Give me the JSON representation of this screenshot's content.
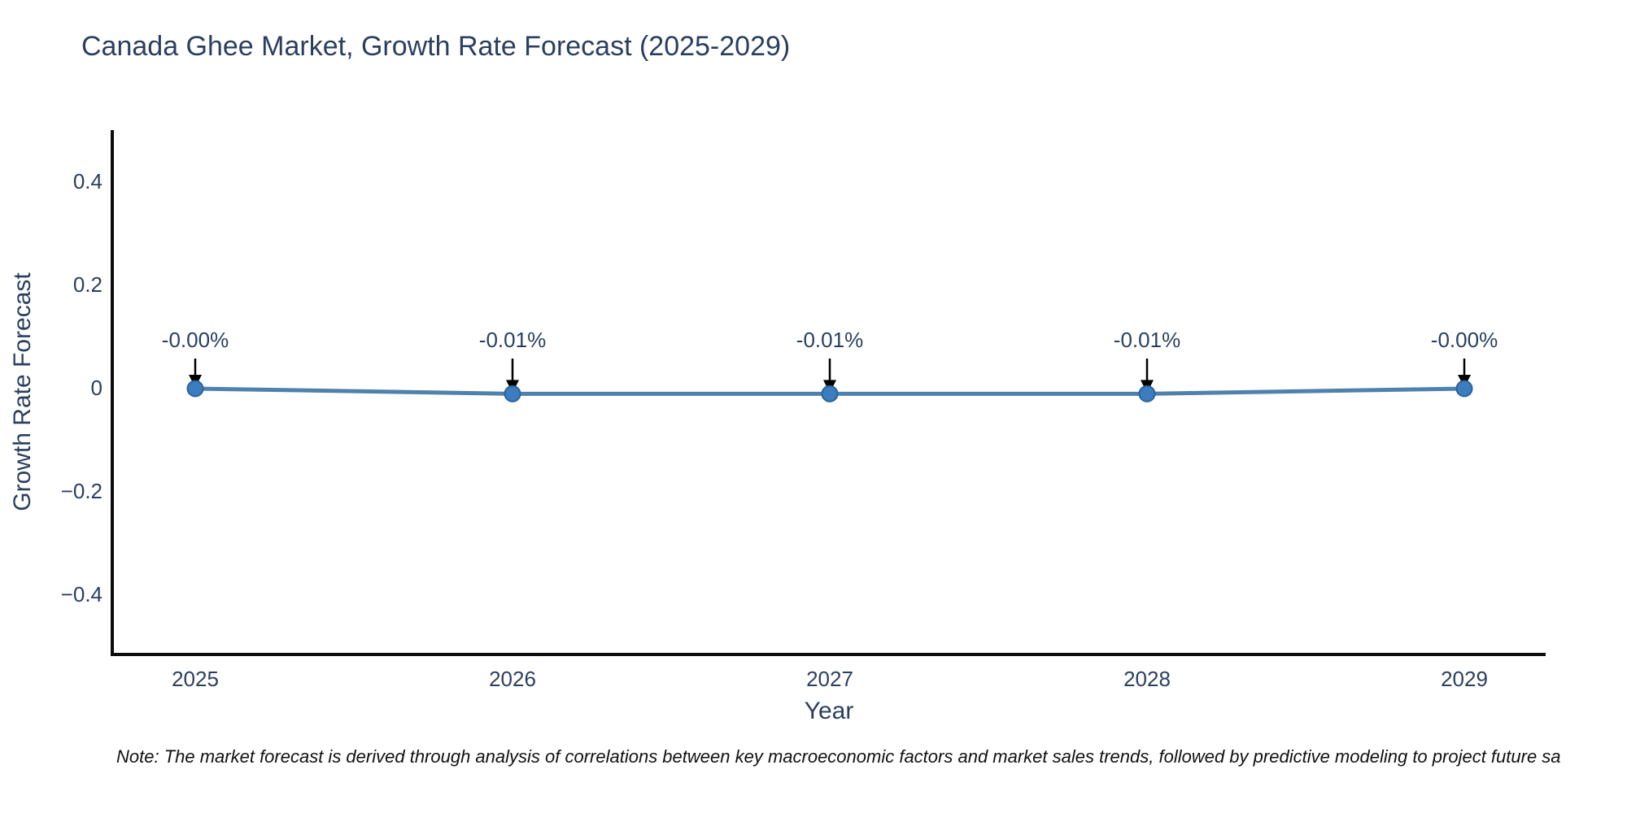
{
  "chart_data": {
    "type": "line",
    "title": "Canada Ghee Market, Growth Rate Forecast (2025-2029)",
    "xlabel": "Year",
    "ylabel": "Growth Rate Forecast",
    "x": [
      2025,
      2026,
      2027,
      2028,
      2029
    ],
    "series": [
      {
        "name": "Growth Rate Forecast",
        "values": [
          0.0,
          -0.01,
          -0.01,
          -0.01,
          0.0
        ]
      }
    ],
    "point_labels": [
      "-0.00%",
      "-0.01%",
      "-0.01%",
      "-0.01%",
      "-0.00%"
    ],
    "xtick_labels": [
      "2025",
      "2026",
      "2027",
      "2028",
      "2029"
    ],
    "ytick_values": [
      0.4,
      0.2,
      0,
      -0.2,
      -0.4
    ],
    "ytick_labels": [
      "0.4",
      "0.2",
      "0",
      "−0.2",
      "−0.4"
    ],
    "ylim": [
      -0.5,
      0.5
    ],
    "grid": false,
    "legend_position": "none",
    "annotations_have_arrows": true,
    "note": "Note: The market forecast is derived through analysis of correlations between key macroeconomic factors and market sales trends, followed by predictive modeling to project future sa",
    "colors": {
      "line": "#4e81ad",
      "marker_fill": "#3c7dbf",
      "marker_edge": "#2c639b",
      "arrow": "#000000",
      "axis_spine": "#0d0d0d",
      "text": "#2a3f5f",
      "note_text": "#111111",
      "background": "#ffffff"
    }
  }
}
